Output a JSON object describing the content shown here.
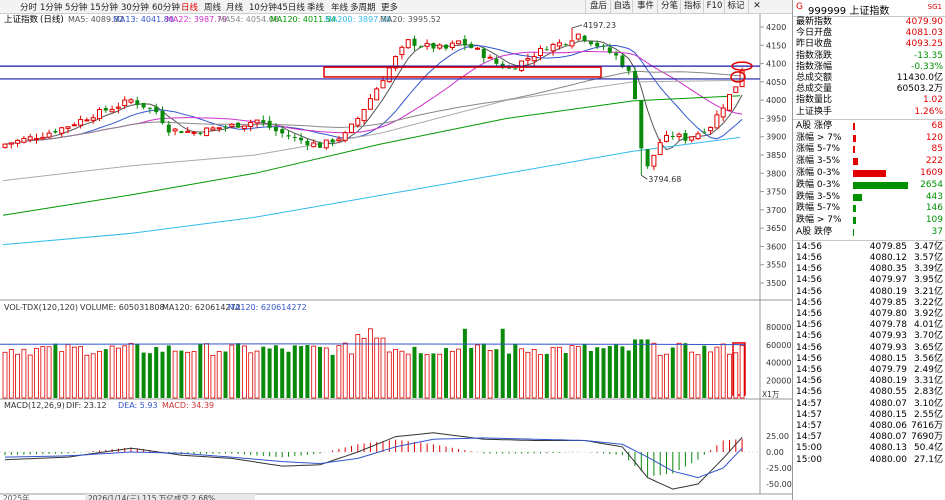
{
  "topbar": {
    "index_name": "上证指数",
    "timeframes": [
      "分时",
      "1分钟",
      "5分钟",
      "15分钟",
      "30分钟",
      "60分钟",
      "日线",
      "周线",
      "月线",
      "10分钟",
      "45日线",
      "季线",
      "年线",
      "多周期",
      "更多"
    ],
    "active_timeframe": "日线",
    "buttons": [
      "盘后",
      "自选",
      "事件",
      "分笔",
      "指标",
      "F10",
      "标记"
    ],
    "close_symbol": "✕"
  },
  "legend": {
    "title": "上证指数",
    "period": "(日线)",
    "items": [
      {
        "label": "MA5: 4089.32",
        "color": "#555555"
      },
      {
        "label": "MA13: 4041.80",
        "color": "#3355cc"
      },
      {
        "label": "MA22: 3987.79",
        "color": "#cc33cc"
      },
      {
        "label": "MA54: 4054.08",
        "color": "#888888"
      },
      {
        "label": "MA120: 4011.54",
        "color": "#009900"
      },
      {
        "label": "MA200: 3897.38",
        "color": "#33bbee"
      },
      {
        "label": "MA20: 3995.52",
        "color": "#555555"
      }
    ]
  },
  "annotations": {
    "high": "4197.23",
    "low": "3794.68"
  },
  "price_axis": [
    "4200",
    "4150",
    "4100",
    "4050",
    "4000",
    "3950",
    "3900",
    "3850",
    "3800",
    "3750",
    "3700",
    "3650",
    "3600",
    "3550",
    "3500"
  ],
  "volume": {
    "legend": [
      {
        "label": "VOL-TDX(120,120)",
        "color": "#333333"
      },
      {
        "label": "VOLUME: 605031808",
        "color": "#333333"
      },
      {
        "label": "MA120: 620614272",
        "color": "#333333"
      },
      {
        "label": "MA120: 620614272",
        "color": "#3355cc"
      }
    ],
    "axis": [
      "80000",
      "60000",
      "40000",
      "20000"
    ],
    "unit": "X1万"
  },
  "macd": {
    "legend": [
      {
        "label": "MACD(12,26,9)",
        "color": "#333333"
      },
      {
        "label": "DIF: 23.12",
        "color": "#333333"
      },
      {
        "label": "DEA: 5.93",
        "color": "#3355cc"
      },
      {
        "label": "MACD: 34.39",
        "color": "#cc3333"
      }
    ],
    "axis": [
      "25.00",
      "0.00",
      "-25.00",
      "-50.00"
    ]
  },
  "bottom_strip": {
    "date_left": "2025年",
    "info": "2026/1/14(三) 115 万亿成交 2.68%"
  },
  "panel": {
    "code": "999999",
    "name": "上证指数",
    "g_label": "G",
    "sq_label": "SG1",
    "stats": [
      {
        "k": "最新指数",
        "v": "4079.90",
        "c": "red"
      },
      {
        "k": "今日开盘",
        "v": "4081.03",
        "c": "red"
      },
      {
        "k": "昨日收盘",
        "v": "4093.25",
        "c": "red"
      },
      {
        "k": "指数涨跌",
        "v": "-13.35",
        "c": "green"
      },
      {
        "k": "指数涨幅",
        "v": "-0.33%",
        "c": "green"
      },
      {
        "k": "总成交额",
        "v": "11430.0亿",
        "c": "black"
      },
      {
        "k": "总成交量",
        "v": "60503.2万",
        "c": "black"
      },
      {
        "k": "指数量比",
        "v": "1.02",
        "c": "red"
      },
      {
        "k": "上证换手",
        "v": "1.26%",
        "c": "red"
      }
    ],
    "breadth": [
      {
        "k": "A股 涨停",
        "v": "68",
        "color": "#e00000",
        "ratio": 0.03
      },
      {
        "k": "涨幅 > 7%",
        "v": "120",
        "color": "#e00000",
        "ratio": 0.05
      },
      {
        "k": "涨幅 5-7%",
        "v": "85",
        "color": "#e00000",
        "ratio": 0.035
      },
      {
        "k": "涨幅 3-5%",
        "v": "222",
        "color": "#e00000",
        "ratio": 0.09
      },
      {
        "k": "涨幅 0-3%",
        "v": "1609",
        "color": "#e00000",
        "ratio": 0.6
      },
      {
        "k": "跌幅 0-3%",
        "v": "2654",
        "color": "#009000",
        "ratio": 1.0
      },
      {
        "k": "跌幅 3-5%",
        "v": "443",
        "color": "#009000",
        "ratio": 0.17
      },
      {
        "k": "跌幅 5-7%",
        "v": "146",
        "color": "#009000",
        "ratio": 0.06
      },
      {
        "k": "跌幅 > 7%",
        "v": "109",
        "color": "#009000",
        "ratio": 0.045
      },
      {
        "k": "A股 跌停",
        "v": "37",
        "color": "#009000",
        "ratio": 0.015
      }
    ],
    "ticks": [
      {
        "t": "14:56",
        "p": "4079.85",
        "a": "3.47亿"
      },
      {
        "t": "14:56",
        "p": "4080.12",
        "a": "3.57亿"
      },
      {
        "t": "14:56",
        "p": "4080.35",
        "a": "3.39亿"
      },
      {
        "t": "14:56",
        "p": "4079.97",
        "a": "3.95亿"
      },
      {
        "t": "14:56",
        "p": "4080.19",
        "a": "3.21亿"
      },
      {
        "t": "14:56",
        "p": "4079.85",
        "a": "3.22亿"
      },
      {
        "t": "14:56",
        "p": "4079.80",
        "a": "3.92亿"
      },
      {
        "t": "14:56",
        "p": "4079.78",
        "a": "4.01亿"
      },
      {
        "t": "14:56",
        "p": "4079.93",
        "a": "3.70亿"
      },
      {
        "t": "14:56",
        "p": "4079.93",
        "a": "3.65亿"
      },
      {
        "t": "14:56",
        "p": "4080.15",
        "a": "3.56亿"
      },
      {
        "t": "14:56",
        "p": "4079.79",
        "a": "2.49亿"
      },
      {
        "t": "14:56",
        "p": "4080.19",
        "a": "3.31亿"
      },
      {
        "t": "14:56",
        "p": "4080.55",
        "a": "2.83亿"
      },
      {
        "t": "14:57",
        "p": "4080.07",
        "a": "3.10亿"
      },
      {
        "t": "14:57",
        "p": "4080.15",
        "a": "2.55亿"
      },
      {
        "t": "14:57",
        "p": "4080.06",
        "a": "7616万"
      },
      {
        "t": "14:57",
        "p": "4080.07",
        "a": "7690万"
      },
      {
        "t": "15:00",
        "p": "4080.13",
        "a": "50.4亿"
      },
      {
        "t": "15:00",
        "p": "4080.00",
        "a": "27.1亿"
      }
    ]
  }
}
